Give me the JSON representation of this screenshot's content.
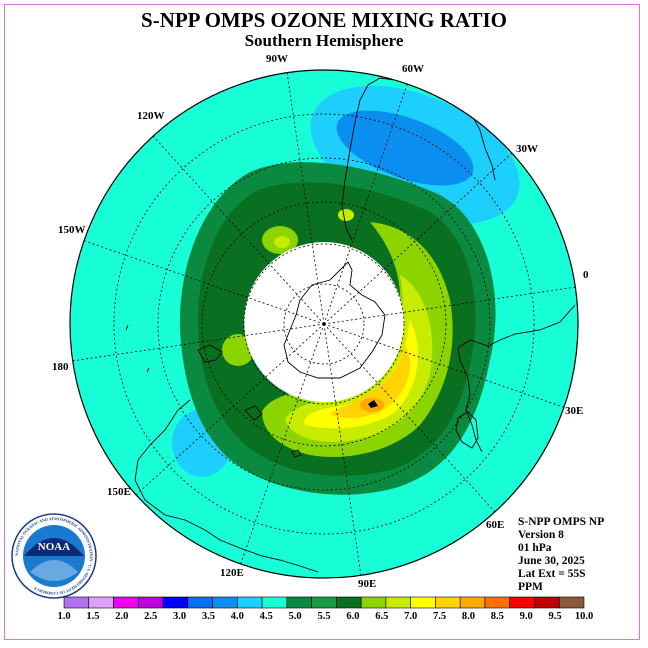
{
  "header": {
    "title": "S-NPP OMPS OZONE MIXING RATIO",
    "subtitle": "Southern Hemisphere"
  },
  "map": {
    "longitude_labels": [
      "90W",
      "60W",
      "30W",
      "0",
      "30E",
      "60E",
      "90E",
      "120E",
      "150E",
      "180",
      "150W",
      "120W"
    ],
    "colors": {
      "background_field": "#18ffd8",
      "low_band_light": "#1ccffc",
      "low_band_dark": "#0a8ff0",
      "polar_night": "#ffffff"
    }
  },
  "info": {
    "lines": [
      "S-NPP OMPS NP",
      "Version 8",
      "01 hPa",
      "June 30, 2025",
      "Lat Ext = 55S",
      "PPM"
    ]
  },
  "colorbar": {
    "colors": [
      "#b070f0",
      "#dca0f8",
      "#f000f0",
      "#c000e0",
      "#0000ff",
      "#0a6ff0",
      "#0a8ff0",
      "#1ccffc",
      "#18ffd8",
      "#0a8a40",
      "#1a9a40",
      "#087020",
      "#8cd400",
      "#c8ec00",
      "#ffff00",
      "#ffd400",
      "#ffaa00",
      "#ff7000",
      "#ff0000",
      "#c00000",
      "#8a5a3a"
    ],
    "labels": [
      "1.0",
      "1.5",
      "2.0",
      "2.5",
      "3.0",
      "3.5",
      "4.0",
      "4.5",
      "5.0",
      "5.5",
      "6.0",
      "6.5",
      "7.0",
      "7.5",
      "8.0",
      "8.5",
      "9.0",
      "9.5",
      "10.0"
    ]
  },
  "logo": {
    "center_text": "NOAA",
    "ring_text": "NATIONAL OCEANIC AND ATMOSPHERIC ADMINISTRATION · U.S. DEPARTMENT OF COMMERCE"
  }
}
